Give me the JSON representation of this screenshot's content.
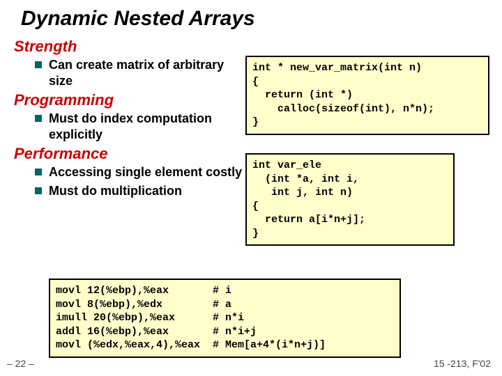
{
  "title": "Dynamic Nested Arrays",
  "sections": {
    "strength": {
      "heading": "Strength",
      "bullets": [
        "Can create matrix of arbitrary size"
      ]
    },
    "programming": {
      "heading": "Programming",
      "bullets": [
        "Must do index computation explicitly"
      ]
    },
    "performance": {
      "heading": "Performance",
      "bullets": [
        "Accessing single element costly",
        "Must do multiplication"
      ]
    }
  },
  "code": {
    "box1": "int * new_var_matrix(int n)\n{\n  return (int *)\n    calloc(sizeof(int), n*n);\n}",
    "box2": "int var_ele\n  (int *a, int i,\n   int j, int n)\n{\n  return a[i*n+j];\n}",
    "box3": "movl 12(%ebp),%eax       # i\nmovl 8(%ebp),%edx        # a\nimull 20(%ebp),%eax      # n*i\naddl 16(%ebp),%eax       # n*i+j\nmovl (%edx,%eax,4),%eax  # Mem[a+4*(i*n+j)]"
  },
  "footer": {
    "left": "– 22 –",
    "right": "15 -213, F'02"
  },
  "styling": {
    "title_color": "#000000",
    "heading_color": "#cc0000",
    "bullet_square_color": "#006666",
    "code_background": "#ffffcc",
    "code_border": "#000000",
    "body_background": "#ffffff",
    "title_fontsize": 30,
    "heading_fontsize": 22,
    "bullet_fontsize": 18,
    "code_fontsize": 15,
    "footer_fontsize": 14,
    "code_font": "Courier New",
    "body_font": "Arial"
  }
}
